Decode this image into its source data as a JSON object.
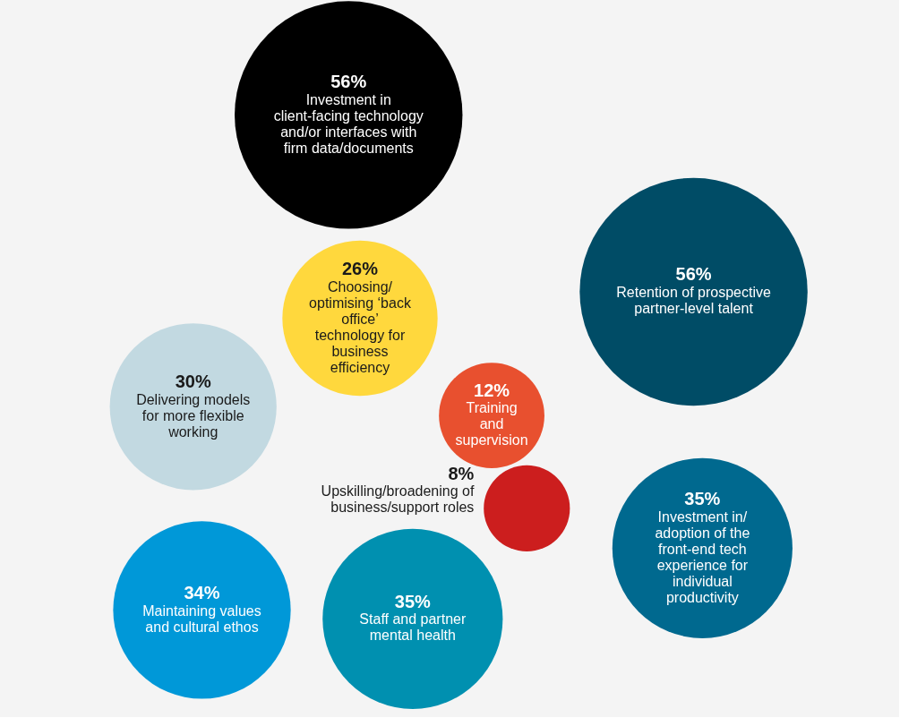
{
  "chart_data": {
    "type": "other",
    "categories": [
      "Investment in client-facing technology and/or interfaces with firm data/documents",
      "Retention of prospective partner-level talent",
      "Choosing/ optimising ‘back office’ technology for business efficiency",
      "Delivering models for more flexible working",
      "Training and supervision",
      "Upskilling/broadening of business/support roles",
      "Investment in/ adoption of the front-end tech experience for individual productivity",
      "Maintaining values and cultural ethos",
      "Staff and partner mental health"
    ],
    "values": [
      56,
      56,
      26,
      30,
      12,
      8,
      35,
      34,
      35
    ],
    "value_labels": [
      "56%",
      "56%",
      "26%",
      "30%",
      "12%",
      "8%",
      "35%",
      "34%",
      "35%"
    ],
    "colors": [
      "#000000",
      "#004c66",
      "#ffd83d",
      "#c2d9e1",
      "#e8502f",
      "#cc1e1e",
      "#00698f",
      "#0098d8",
      "#0090b0"
    ]
  }
}
